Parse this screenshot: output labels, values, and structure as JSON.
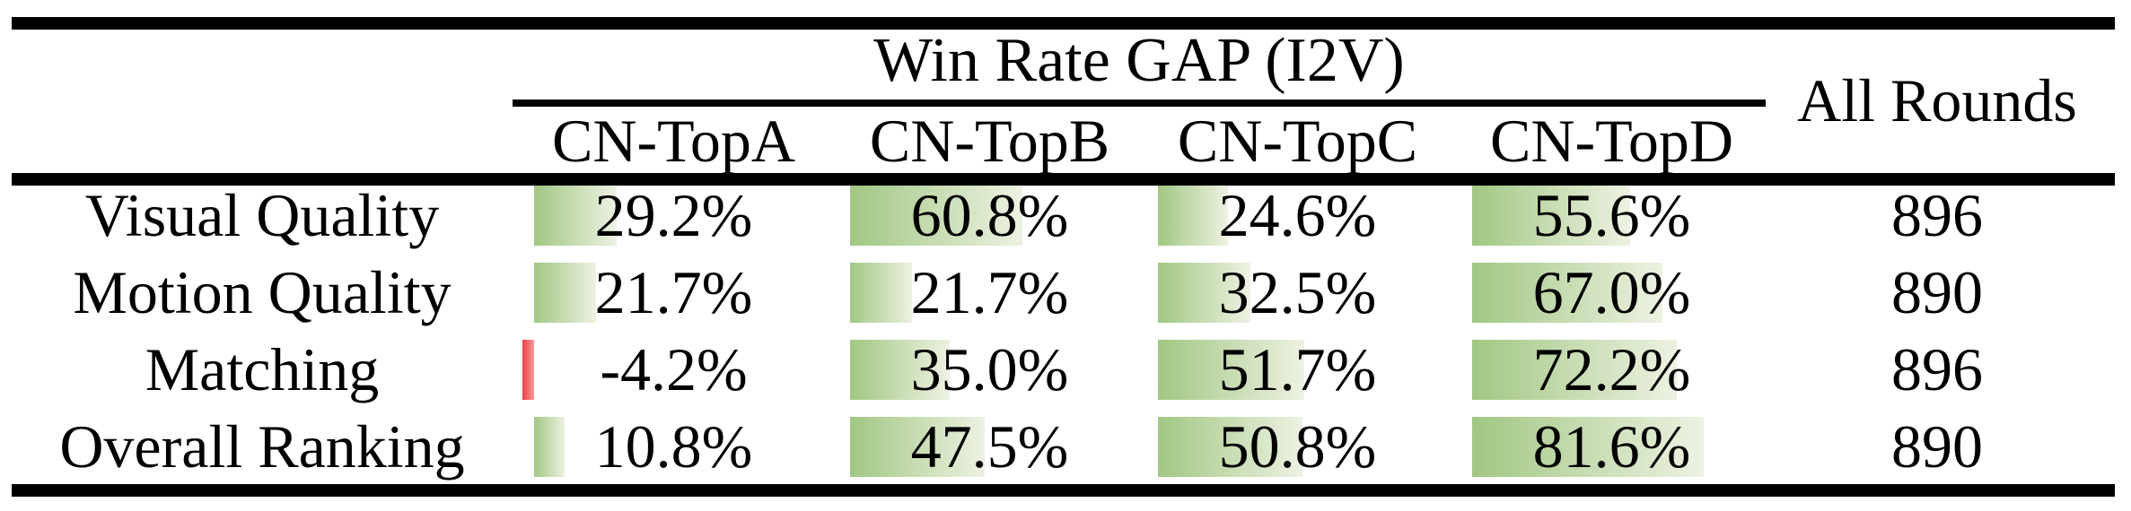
{
  "title": "Win Rate GAP (I2V)",
  "all_rounds_header": "All Rounds",
  "columns": [
    "CN-TopA",
    "CN-TopB",
    "CN-TopC",
    "CN-TopD"
  ],
  "rows": [
    {
      "label": "Visual Quality",
      "values": [
        "29.2%",
        "60.8%",
        "24.6%",
        "55.6%"
      ],
      "all_rounds": "896"
    },
    {
      "label": "Motion Quality",
      "values": [
        "21.7%",
        "21.7%",
        "32.5%",
        "67.0%"
      ],
      "all_rounds": "890"
    },
    {
      "label": "Matching",
      "values": [
        "-4.2%",
        "35.0%",
        "51.7%",
        "72.2%"
      ],
      "all_rounds": "896"
    },
    {
      "label": "Overall Ranking",
      "values": [
        "10.8%",
        "47.5%",
        "50.8%",
        "81.6%"
      ],
      "all_rounds": "890"
    }
  ],
  "colors": {
    "bar_positive": "#a1c783",
    "bar_positive_fade": "#edf2e2",
    "bar_negative": "#ed3f44",
    "bar_negative_fade": "#f5999b",
    "text": "#000000",
    "background": "#ffffff"
  },
  "chart_data": {
    "type": "table",
    "title": "Win Rate GAP (I2V)",
    "columns": [
      "CN-TopA",
      "CN-TopB",
      "CN-TopC",
      "CN-TopD",
      "All Rounds"
    ],
    "row_labels": [
      "Visual Quality",
      "Motion Quality",
      "Matching",
      "Overall Ranking"
    ],
    "win_rate_gap_percent": [
      [
        29.2,
        60.8,
        24.6,
        55.6
      ],
      [
        21.7,
        21.7,
        32.5,
        67.0
      ],
      [
        -4.2,
        35.0,
        51.7,
        72.2
      ],
      [
        10.8,
        47.5,
        50.8,
        81.6
      ]
    ],
    "all_rounds": [
      896,
      890,
      896,
      890
    ],
    "bar_style": "horizontal data bars proportional to value; green gradient for positive, red for negative"
  }
}
